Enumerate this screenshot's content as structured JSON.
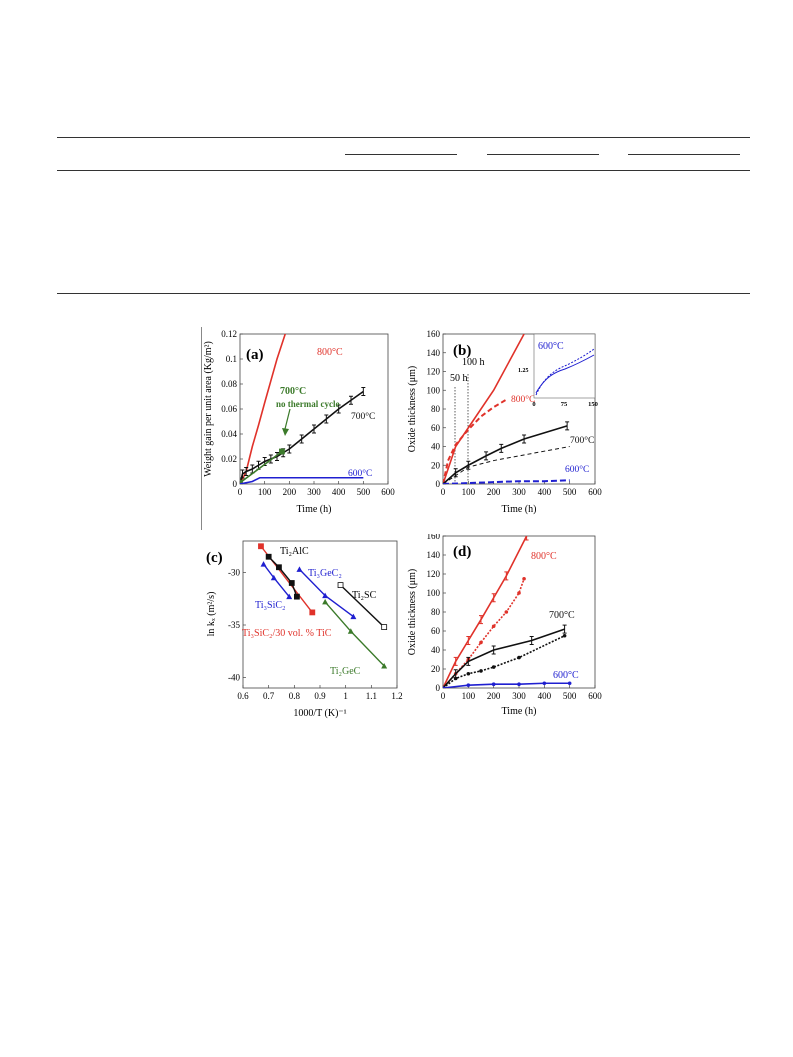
{
  "figure": {
    "panels": [
      {
        "id": "a",
        "label": "(a)",
        "xlabel": "Time (h)",
        "ylabel": "Weight gain per unit area (Kg/m²)",
        "xticks": [
          "0",
          "100",
          "200",
          "300",
          "400",
          "500",
          "600"
        ],
        "yticks": [
          "0",
          "0.02",
          "0.04",
          "0.06",
          "0.08",
          "0.1",
          "0.12"
        ],
        "annotations": [
          "800°C",
          "700°C",
          "700°C",
          "no thermal cycle",
          "600°C"
        ]
      },
      {
        "id": "b",
        "label": "(b)",
        "xlabel": "Time (h)",
        "ylabel": "Oxide thickness (μm)",
        "xticks": [
          "0",
          "100",
          "200",
          "300",
          "400",
          "500",
          "600"
        ],
        "yticks": [
          "0",
          "20",
          "40",
          "60",
          "80",
          "100",
          "120",
          "140",
          "160"
        ],
        "annotations": [
          "50 h",
          "100 h",
          "800°C",
          "700°C",
          "600°C",
          "600°C"
        ],
        "inset": {
          "xticks": [
            "0",
            "75",
            "150"
          ],
          "ytick": "1.25"
        }
      },
      {
        "id": "c",
        "label": "(c)",
        "xlabel": "1000/T (K)⁻¹",
        "ylabel": "ln kₓ (m²/s)",
        "xticks": [
          "0.6",
          "0.7",
          "0.8",
          "0.9",
          "1",
          "1.1",
          "1.2"
        ],
        "yticks": [
          "-30",
          "-35",
          "-40"
        ],
        "annotations": [
          "Ti₂AlC",
          "Ti₃GeC₂",
          "Ti₃SiC₂",
          "Ti₂SC",
          "Ti₃SiC₂/30 vol. % TiC",
          "Ti₂GeC"
        ]
      },
      {
        "id": "d",
        "label": "(d)",
        "xlabel": "Time (h)",
        "ylabel": "Oxide thickness (μm)",
        "xticks": [
          "0",
          "100",
          "200",
          "300",
          "400",
          "500",
          "600"
        ],
        "yticks": [
          "0",
          "20",
          "40",
          "60",
          "80",
          "100",
          "120",
          "140",
          "160"
        ],
        "annotations": [
          "800°C",
          "700°C",
          "600°C"
        ]
      }
    ]
  },
  "chart_data": [
    {
      "type": "line",
      "panel": "a",
      "xlabel": "Time (h)",
      "ylabel": "Weight gain per unit area (Kg/m²)",
      "xlim": [
        0,
        600
      ],
      "ylim": [
        0,
        0.12
      ],
      "series": [
        {
          "name": "800°C",
          "color": "#e0322a",
          "x": [
            0,
            25,
            50,
            75,
            100,
            150,
            200
          ],
          "y": [
            0,
            0.01,
            0.03,
            0.047,
            0.065,
            0.1,
            0.13
          ]
        },
        {
          "name": "700°C",
          "color": "#111111",
          "x": [
            0,
            10,
            25,
            50,
            75,
            100,
            125,
            150,
            175,
            200,
            250,
            300,
            350,
            400,
            450,
            500
          ],
          "y": [
            0,
            0.008,
            0.01,
            0.012,
            0.015,
            0.018,
            0.02,
            0.022,
            0.025,
            0.028,
            0.036,
            0.044,
            0.052,
            0.06,
            0.067,
            0.074
          ]
        },
        {
          "name": "700°C no thermal cycle",
          "color": "#3b7a2a",
          "x": [
            0,
            170
          ],
          "y": [
            0.001,
            0.026
          ]
        },
        {
          "name": "600°C",
          "color": "#1f1fd0",
          "x": [
            0,
            50,
            80,
            150,
            250,
            350,
            450,
            500
          ],
          "y": [
            0,
            0.002,
            0.005,
            0.005,
            0.005,
            0.005,
            0.005,
            0.005
          ]
        }
      ]
    },
    {
      "type": "line",
      "panel": "b",
      "xlabel": "Time (h)",
      "ylabel": "Oxide thickness (μm)",
      "xlim": [
        0,
        600
      ],
      "ylim": [
        0,
        160
      ],
      "series": [
        {
          "name": "800°C",
          "color": "#e0322a",
          "x": [
            0,
            50,
            100,
            200,
            320
          ],
          "y": [
            0,
            40,
            60,
            100,
            160
          ]
        },
        {
          "name": "800°C",
          "color": "#e0322a",
          "x": [
            0,
            20,
            50,
            100,
            150,
            200,
            250
          ],
          "y": [
            0,
            25,
            42,
            58,
            72,
            82,
            90
          ]
        },
        {
          "name": "700°C",
          "color": "#111111",
          "x": [
            0,
            50,
            100,
            170,
            230,
            320,
            490
          ],
          "y": [
            0,
            12,
            20,
            30,
            38,
            48,
            62
          ]
        },
        {
          "name": "700°C",
          "color": "#111111",
          "x": [
            0,
            100,
            200,
            300,
            400,
            500
          ],
          "y": [
            0,
            18,
            25,
            30,
            35,
            40
          ]
        },
        {
          "name": "600°C",
          "color": "#1f1fd0",
          "x": [
            0,
            100,
            200,
            300,
            400,
            500
          ],
          "y": [
            0,
            1,
            2,
            3,
            3,
            4
          ]
        }
      ]
    },
    {
      "type": "scatter",
      "panel": "c",
      "xlabel": "1000/T (K)⁻¹",
      "ylabel": "ln kₓ (m²/s)",
      "xlim": [
        0.6,
        1.2
      ],
      "ylim": [
        -41,
        -27
      ],
      "series": [
        {
          "name": "Ti₃SiC₂/30 vol. % TiC",
          "color": "#e0322a",
          "x": [
            0.67,
            0.87
          ],
          "y": [
            -27.5,
            -33.8
          ]
        },
        {
          "name": "Ti₂AlC",
          "color": "#111111",
          "x": [
            0.7,
            0.74,
            0.79,
            0.81
          ],
          "y": [
            -28.5,
            -29.5,
            -31,
            -32.3
          ]
        },
        {
          "name": "Ti₃SiC₂",
          "color": "#1f1fd0",
          "x": [
            0.68,
            0.72,
            0.78
          ],
          "y": [
            -29.2,
            -30.5,
            -32.3
          ]
        },
        {
          "name": "Ti₃GeC₂",
          "color": "#1f1fd0",
          "x": [
            0.82,
            0.92,
            1.03
          ],
          "y": [
            -29.7,
            -32.2,
            -34.2
          ]
        },
        {
          "name": "Ti₂SC",
          "color": "#111111",
          "x": [
            0.98,
            1.15
          ],
          "y": [
            -31.2,
            -35.2
          ]
        },
        {
          "name": "Ti₂GeC",
          "color": "#3b7a2a",
          "x": [
            0.92,
            1.02,
            1.15
          ],
          "y": [
            -32.8,
            -35.6,
            -38.9
          ]
        }
      ]
    },
    {
      "type": "line",
      "panel": "d",
      "xlabel": "Time (h)",
      "ylabel": "Oxide thickness (μm)",
      "xlim": [
        0,
        600
      ],
      "ylim": [
        0,
        160
      ],
      "series": [
        {
          "name": "800°C",
          "color": "#e0322a",
          "x": [
            0,
            50,
            100,
            150,
            200,
            250,
            330
          ],
          "y": [
            0,
            28,
            50,
            72,
            95,
            118,
            160
          ]
        },
        {
          "name": "800°C",
          "color": "#e0322a",
          "x": [
            0,
            50,
            100,
            150,
            200,
            250,
            300,
            320
          ],
          "y": [
            0,
            15,
            30,
            48,
            65,
            80,
            100,
            115
          ]
        },
        {
          "name": "700°C",
          "color": "#111111",
          "x": [
            0,
            50,
            100,
            200,
            350,
            480
          ],
          "y": [
            0,
            15,
            28,
            40,
            50,
            62
          ]
        },
        {
          "name": "700°C",
          "color": "#111111",
          "x": [
            0,
            50,
            100,
            150,
            200,
            300,
            480
          ],
          "y": [
            0,
            10,
            15,
            18,
            22,
            32,
            55
          ]
        },
        {
          "name": "600°C",
          "color": "#1f1fd0",
          "x": [
            0,
            100,
            200,
            300,
            400,
            500
          ],
          "y": [
            0,
            3,
            4,
            4,
            5,
            5
          ]
        }
      ]
    }
  ]
}
